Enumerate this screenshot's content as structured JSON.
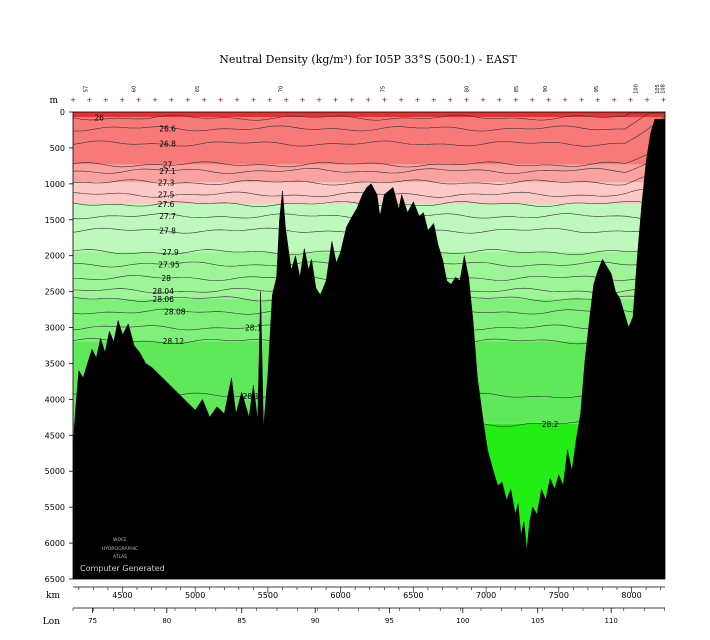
{
  "chart_data": {
    "type": "section-contour",
    "title": "Neutral Density (kg/m³) for I05P 33°S (500:1) - EAST",
    "depth_unit": "m",
    "x_unit": "km",
    "lon_label": "Lon",
    "xlim": [
      4160,
      8230
    ],
    "ylim": [
      0,
      6500
    ],
    "depth_ticks": [
      0,
      500,
      1000,
      1500,
      2000,
      2500,
      3000,
      3500,
      4000,
      4500,
      5000,
      5500,
      6000,
      6500
    ],
    "km_ticks": [
      4500,
      5000,
      5500,
      6000,
      6500,
      7000,
      7500,
      8000
    ],
    "lon_ticks": [
      {
        "km": 4295,
        "label": "75"
      },
      {
        "km": 4805,
        "label": "80"
      },
      {
        "km": 5320,
        "label": "85"
      },
      {
        "km": 5825,
        "label": "90"
      },
      {
        "km": 6335,
        "label": "95"
      },
      {
        "km": 6840,
        "label": "100"
      },
      {
        "km": 7355,
        "label": "105"
      },
      {
        "km": 7860,
        "label": "110"
      }
    ],
    "station_labels": [
      {
        "km": 4260,
        "label": "57"
      },
      {
        "km": 4590,
        "label": "60"
      },
      {
        "km": 5025,
        "label": "65"
      },
      {
        "km": 5600,
        "label": "70"
      },
      {
        "km": 6300,
        "label": "75"
      },
      {
        "km": 6880,
        "label": "80"
      },
      {
        "km": 7220,
        "label": "85"
      },
      {
        "km": 7420,
        "label": "90"
      },
      {
        "km": 7770,
        "label": "95"
      },
      {
        "km": 8040,
        "label": "100"
      },
      {
        "km": 8190,
        "label": "105"
      },
      {
        "km": 8225,
        "label": "108"
      }
    ],
    "contours": [
      {
        "value": "26",
        "depth": 80
      },
      {
        "value": "26.6",
        "depth": 230
      },
      {
        "value": "26.8",
        "depth": 440
      },
      {
        "value": "27",
        "depth": 730
      },
      {
        "value": "27.1",
        "depth": 820
      },
      {
        "value": "27.3",
        "depth": 980
      },
      {
        "value": "27.5",
        "depth": 1150
      },
      {
        "value": "27.6",
        "depth": 1280
      },
      {
        "value": "27.7",
        "depth": 1450
      },
      {
        "value": "27.8",
        "depth": 1650
      },
      {
        "value": "27.9",
        "depth": 1950
      },
      {
        "value": "27.95",
        "depth": 2120
      },
      {
        "value": "28",
        "depth": 2310
      },
      {
        "value": "28.04",
        "depth": 2490
      },
      {
        "value": "28.06",
        "depth": 2600
      },
      {
        "value": "28.08",
        "depth": 2780
      },
      {
        "value": "28.1",
        "depth": 3000
      },
      {
        "value": "28.12",
        "depth": 3190
      },
      {
        "value": "28.14",
        "depth": 3950
      },
      {
        "value": "28.2",
        "depth": 4340
      }
    ],
    "bands": [
      {
        "from": 0,
        "to": 70,
        "color": "#e83030"
      },
      {
        "from": 70,
        "to": 730,
        "color": "#f77a78"
      },
      {
        "from": 730,
        "to": 980,
        "color": "#f9a2a0"
      },
      {
        "from": 980,
        "to": 1280,
        "color": "#fcc9c6"
      },
      {
        "from": 1280,
        "to": 1950,
        "color": "#bff8bd"
      },
      {
        "from": 1950,
        "to": 2600,
        "color": "#9df598"
      },
      {
        "from": 2600,
        "to": 3190,
        "color": "#7ff07a"
      },
      {
        "from": 3190,
        "to": 4340,
        "color": "#5fe95a"
      },
      {
        "from": 4340,
        "to": 6500,
        "color": "#22ee16"
      }
    ],
    "bathymetry": [
      [
        4160,
        4700
      ],
      [
        4175,
        4200
      ],
      [
        4200,
        3600
      ],
      [
        4230,
        3700
      ],
      [
        4260,
        3500
      ],
      [
        4290,
        3300
      ],
      [
        4320,
        3420
      ],
      [
        4350,
        3150
      ],
      [
        4380,
        3350
      ],
      [
        4410,
        3050
      ],
      [
        4440,
        3200
      ],
      [
        4470,
        2900
      ],
      [
        4500,
        3100
      ],
      [
        4540,
        2950
      ],
      [
        4580,
        3250
      ],
      [
        4620,
        3350
      ],
      [
        4660,
        3500
      ],
      [
        4700,
        3550
      ],
      [
        4750,
        3650
      ],
      [
        4800,
        3750
      ],
      [
        4850,
        3850
      ],
      [
        4900,
        3950
      ],
      [
        4950,
        4050
      ],
      [
        5000,
        4150
      ],
      [
        5050,
        4000
      ],
      [
        5100,
        4250
      ],
      [
        5150,
        4100
      ],
      [
        5200,
        4200
      ],
      [
        5250,
        3700
      ],
      [
        5280,
        4200
      ],
      [
        5320,
        3900
      ],
      [
        5370,
        4250
      ],
      [
        5400,
        3800
      ],
      [
        5430,
        4300
      ],
      [
        5450,
        2500
      ],
      [
        5470,
        4400
      ],
      [
        5500,
        3650
      ],
      [
        5530,
        2550
      ],
      [
        5560,
        2300
      ],
      [
        5580,
        1500
      ],
      [
        5600,
        1100
      ],
      [
        5620,
        1600
      ],
      [
        5660,
        2200
      ],
      [
        5690,
        2000
      ],
      [
        5720,
        2300
      ],
      [
        5750,
        1900
      ],
      [
        5780,
        2200
      ],
      [
        5800,
        2050
      ],
      [
        5830,
        2450
      ],
      [
        5860,
        2550
      ],
      [
        5900,
        2350
      ],
      [
        5940,
        1800
      ],
      [
        5970,
        2100
      ],
      [
        6000,
        1950
      ],
      [
        6040,
        1600
      ],
      [
        6080,
        1450
      ],
      [
        6110,
        1350
      ],
      [
        6150,
        1150
      ],
      [
        6180,
        1050
      ],
      [
        6210,
        1000
      ],
      [
        6250,
        1150
      ],
      [
        6270,
        1450
      ],
      [
        6300,
        1150
      ],
      [
        6330,
        1100
      ],
      [
        6360,
        1050
      ],
      [
        6380,
        1200
      ],
      [
        6400,
        1350
      ],
      [
        6420,
        1150
      ],
      [
        6460,
        1400
      ],
      [
        6500,
        1250
      ],
      [
        6540,
        1450
      ],
      [
        6570,
        1400
      ],
      [
        6600,
        1650
      ],
      [
        6640,
        1550
      ],
      [
        6670,
        1850
      ],
      [
        6700,
        2050
      ],
      [
        6730,
        2350
      ],
      [
        6760,
        2400
      ],
      [
        6790,
        2300
      ],
      [
        6820,
        2350
      ],
      [
        6850,
        2000
      ],
      [
        6880,
        2300
      ],
      [
        6910,
        2900
      ],
      [
        6940,
        3700
      ],
      [
        6980,
        4300
      ],
      [
        7010,
        4700
      ],
      [
        7050,
        5000
      ],
      [
        7080,
        5200
      ],
      [
        7110,
        5150
      ],
      [
        7140,
        5400
      ],
      [
        7170,
        5250
      ],
      [
        7200,
        5600
      ],
      [
        7220,
        5450
      ],
      [
        7240,
        5900
      ],
      [
        7260,
        5700
      ],
      [
        7280,
        6100
      ],
      [
        7300,
        5700
      ],
      [
        7320,
        5500
      ],
      [
        7350,
        5600
      ],
      [
        7380,
        5250
      ],
      [
        7410,
        5400
      ],
      [
        7440,
        5100
      ],
      [
        7470,
        5250
      ],
      [
        7500,
        5050
      ],
      [
        7530,
        5200
      ],
      [
        7560,
        4700
      ],
      [
        7590,
        5000
      ],
      [
        7620,
        4550
      ],
      [
        7650,
        4200
      ],
      [
        7680,
        3450
      ],
      [
        7710,
        2900
      ],
      [
        7740,
        2400
      ],
      [
        7770,
        2200
      ],
      [
        7800,
        2050
      ],
      [
        7830,
        2150
      ],
      [
        7860,
        2250
      ],
      [
        7890,
        2500
      ],
      [
        7920,
        2600
      ],
      [
        7950,
        2800
      ],
      [
        7980,
        3000
      ],
      [
        8010,
        2850
      ],
      [
        8040,
        2000
      ],
      [
        8070,
        1300
      ],
      [
        8100,
        700
      ],
      [
        8130,
        300
      ],
      [
        8160,
        100
      ],
      [
        8230,
        100
      ]
    ]
  },
  "ui": {
    "atlas_logo_lines": [
      "WOCE",
      "HYDROGRAPHIC",
      "ATLAS"
    ],
    "computer_generated": "Computer Generated"
  }
}
